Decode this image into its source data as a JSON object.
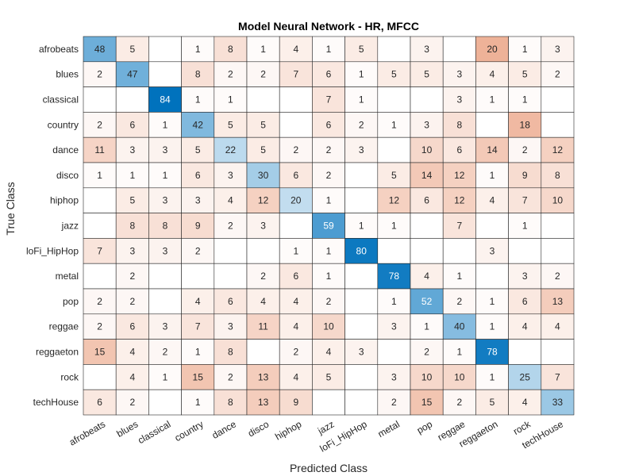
{
  "chart_data": {
    "type": "heatmap",
    "title": "Model Neural Network -  HR, MFCC",
    "xlabel": "Predicted Class",
    "ylabel": "True Class",
    "classes": [
      "afrobeats",
      "blues",
      "classical",
      "country",
      "dance",
      "disco",
      "hiphop",
      "jazz",
      "loFi_HipHop",
      "metal",
      "pop",
      "reggae",
      "reggaeton",
      "rock",
      "techHouse"
    ],
    "row_labels": [
      "afrobeats",
      "blues",
      "classical",
      "country",
      "dance",
      "disco",
      "hiphop",
      "jazz",
      "loFi_HipHop",
      "metal",
      "pop",
      "reggae",
      "reggaeton",
      "rock",
      "techHouse"
    ],
    "col_labels": [
      "afrobeats",
      "blues",
      "classical",
      "country",
      "dance",
      "disco",
      "hiphop",
      "jazz",
      "loFi_HipHop",
      "metal",
      "pop",
      "reggae",
      "reggaeton",
      "rock",
      "techHouse"
    ],
    "matrix": [
      [
        48,
        5,
        null,
        1,
        8,
        1,
        4,
        1,
        5,
        null,
        3,
        null,
        20,
        1,
        3
      ],
      [
        2,
        47,
        null,
        8,
        2,
        2,
        7,
        6,
        1,
        5,
        5,
        3,
        4,
        5,
        2
      ],
      [
        null,
        null,
        84,
        1,
        1,
        null,
        null,
        7,
        1,
        null,
        null,
        3,
        1,
        1,
        null
      ],
      [
        2,
        6,
        1,
        42,
        5,
        5,
        null,
        6,
        2,
        1,
        3,
        8,
        null,
        18,
        null
      ],
      [
        11,
        3,
        3,
        5,
        22,
        5,
        2,
        2,
        3,
        null,
        10,
        6,
        14,
        2,
        12
      ],
      [
        1,
        1,
        1,
        6,
        3,
        30,
        6,
        2,
        null,
        5,
        14,
        12,
        1,
        9,
        8
      ],
      [
        null,
        5,
        3,
        3,
        4,
        12,
        20,
        1,
        null,
        12,
        6,
        12,
        4,
        7,
        10
      ],
      [
        null,
        8,
        8,
        9,
        2,
        3,
        null,
        59,
        1,
        1,
        null,
        7,
        null,
        1,
        null
      ],
      [
        7,
        3,
        3,
        2,
        null,
        null,
        1,
        1,
        80,
        null,
        null,
        null,
        3,
        null,
        null
      ],
      [
        null,
        2,
        null,
        null,
        null,
        2,
        6,
        1,
        null,
        78,
        4,
        1,
        null,
        3,
        2
      ],
      [
        2,
        2,
        null,
        4,
        6,
        4,
        4,
        2,
        null,
        1,
        52,
        2,
        1,
        6,
        13
      ],
      [
        2,
        6,
        3,
        7,
        3,
        11,
        4,
        10,
        null,
        3,
        1,
        40,
        1,
        4,
        4
      ],
      [
        15,
        4,
        2,
        1,
        8,
        null,
        2,
        4,
        3,
        null,
        2,
        1,
        78,
        null,
        null
      ],
      [
        null,
        4,
        1,
        15,
        2,
        13,
        4,
        5,
        null,
        3,
        10,
        10,
        1,
        25,
        7
      ],
      [
        6,
        2,
        null,
        1,
        8,
        13,
        9,
        null,
        null,
        2,
        15,
        2,
        5,
        4,
        33
      ]
    ],
    "colors": {
      "diagonal_max": "#0072bd",
      "offdiag_max": "#d95319",
      "empty": "#ffffff",
      "text_dark": "#262626",
      "text_light": "#ffffff",
      "grid": "#262626"
    },
    "grid": true,
    "legend": "none"
  }
}
